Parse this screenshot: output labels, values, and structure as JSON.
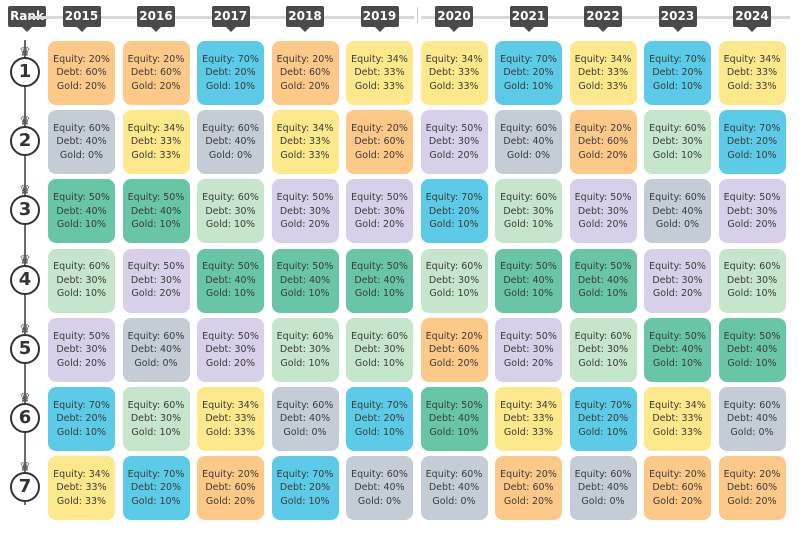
{
  "header_label": "Rank",
  "palette": {
    "Equity: 70%|Debt: 20%|Gold: 10%": "#5ccbe8",
    "Equity: 20%|Debt: 60%|Gold: 20%": "#fdc989",
    "Equity: 34%|Debt: 33%|Gold: 33%": "#fde98c",
    "Equity: 60%|Debt: 40%|Gold: 0%": "#c4cdd5",
    "Equity: 50%|Debt: 30%|Gold: 20%": "#d8d0ea",
    "Equity: 60%|Debt: 30%|Gold: 10%": "#c6e6cb",
    "Equity: 50%|Debt: 40%|Gold: 10%": "#68c6a6"
  },
  "chart_data": {
    "type": "table",
    "columns": [
      "2015",
      "2016",
      "2017",
      "2018",
      "2019",
      "2020",
      "2021",
      "2022",
      "2023",
      "2024"
    ],
    "rows": [
      "1",
      "2",
      "3",
      "4",
      "5",
      "6",
      "7"
    ],
    "cells": [
      [
        [
          "Equity: 20%",
          "Debt: 60%",
          "Gold: 20%"
        ],
        [
          "Equity: 20%",
          "Debt: 60%",
          "Gold: 20%"
        ],
        [
          "Equity: 70%",
          "Debt: 20%",
          "Gold: 10%"
        ],
        [
          "Equity: 20%",
          "Debt: 60%",
          "Gold: 20%"
        ],
        [
          "Equity: 34%",
          "Debt: 33%",
          "Gold: 33%"
        ],
        [
          "Equity: 34%",
          "Debt: 33%",
          "Gold: 33%"
        ],
        [
          "Equity: 70%",
          "Debt: 20%",
          "Gold: 10%"
        ],
        [
          "Equity: 34%",
          "Debt: 33%",
          "Gold: 33%"
        ],
        [
          "Equity: 70%",
          "Debt: 20%",
          "Gold: 10%"
        ],
        [
          "Equity: 34%",
          "Debt: 33%",
          "Gold: 33%"
        ]
      ],
      [
        [
          "Equity: 60%",
          "Debt: 40%",
          "Gold: 0%"
        ],
        [
          "Equity: 34%",
          "Debt: 33%",
          "Gold: 33%"
        ],
        [
          "Equity: 60%",
          "Debt: 40%",
          "Gold: 0%"
        ],
        [
          "Equity: 34%",
          "Debt: 33%",
          "Gold: 33%"
        ],
        [
          "Equity: 20%",
          "Debt: 60%",
          "Gold: 20%"
        ],
        [
          "Equity: 50%",
          "Debt: 30%",
          "Gold: 20%"
        ],
        [
          "Equity: 60%",
          "Debt: 40%",
          "Gold: 0%"
        ],
        [
          "Equity: 20%",
          "Debt: 60%",
          "Gold: 20%"
        ],
        [
          "Equity: 60%",
          "Debt: 30%",
          "Gold: 10%"
        ],
        [
          "Equity: 70%",
          "Debt: 20%",
          "Gold: 10%"
        ]
      ],
      [
        [
          "Equity: 50%",
          "Debt: 40%",
          "Gold: 10%"
        ],
        [
          "Equity: 50%",
          "Debt: 40%",
          "Gold: 10%"
        ],
        [
          "Equity: 60%",
          "Debt: 30%",
          "Gold: 10%"
        ],
        [
          "Equity: 50%",
          "Debt: 30%",
          "Gold: 20%"
        ],
        [
          "Equity: 50%",
          "Debt: 30%",
          "Gold: 20%"
        ],
        [
          "Equity: 70%",
          "Debt: 20%",
          "Gold: 10%"
        ],
        [
          "Equity: 60%",
          "Debt: 30%",
          "Gold: 10%"
        ],
        [
          "Equity: 50%",
          "Debt: 30%",
          "Gold: 20%"
        ],
        [
          "Equity: 60%",
          "Debt: 40%",
          "Gold: 0%"
        ],
        [
          "Equity: 50%",
          "Debt: 30%",
          "Gold: 20%"
        ]
      ],
      [
        [
          "Equity: 60%",
          "Debt: 30%",
          "Gold: 10%"
        ],
        [
          "Equity: 50%",
          "Debt: 30%",
          "Gold: 20%"
        ],
        [
          "Equity: 50%",
          "Debt: 40%",
          "Gold: 10%"
        ],
        [
          "Equity: 50%",
          "Debt: 40%",
          "Gold: 10%"
        ],
        [
          "Equity: 50%",
          "Debt: 40%",
          "Gold: 10%"
        ],
        [
          "Equity: 60%",
          "Debt: 30%",
          "Gold: 10%"
        ],
        [
          "Equity: 50%",
          "Debt: 40%",
          "Gold: 10%"
        ],
        [
          "Equity: 50%",
          "Debt: 40%",
          "Gold: 10%"
        ],
        [
          "Equity: 50%",
          "Debt: 30%",
          "Gold: 20%"
        ],
        [
          "Equity: 60%",
          "Debt: 30%",
          "Gold: 10%"
        ]
      ],
      [
        [
          "Equity: 50%",
          "Debt: 30%",
          "Gold: 20%"
        ],
        [
          "Equity: 60%",
          "Debt: 40%",
          "Gold: 0%"
        ],
        [
          "Equity: 50%",
          "Debt: 30%",
          "Gold: 20%"
        ],
        [
          "Equity: 60%",
          "Debt: 30%",
          "Gold: 10%"
        ],
        [
          "Equity: 60%",
          "Debt: 30%",
          "Gold: 10%"
        ],
        [
          "Equity: 20%",
          "Debt: 60%",
          "Gold: 20%"
        ],
        [
          "Equity: 50%",
          "Debt: 30%",
          "Gold: 20%"
        ],
        [
          "Equity: 60%",
          "Debt: 30%",
          "Gold: 10%"
        ],
        [
          "Equity: 50%",
          "Debt: 40%",
          "Gold: 10%"
        ],
        [
          "Equity: 50%",
          "Debt: 40%",
          "Gold: 10%"
        ]
      ],
      [
        [
          "Equity: 70%",
          "Debt: 20%",
          "Gold: 10%"
        ],
        [
          "Equity: 60%",
          "Debt: 30%",
          "Gold: 10%"
        ],
        [
          "Equity: 34%",
          "Debt: 33%",
          "Gold: 33%"
        ],
        [
          "Equity: 60%",
          "Debt: 40%",
          "Gold: 0%"
        ],
        [
          "Equity: 70%",
          "Debt: 20%",
          "Gold: 10%"
        ],
        [
          "Equity: 50%",
          "Debt: 40%",
          "Gold: 10%"
        ],
        [
          "Equity: 34%",
          "Debt: 33%",
          "Gold: 33%"
        ],
        [
          "Equity: 70%",
          "Debt: 20%",
          "Gold: 10%"
        ],
        [
          "Equity: 34%",
          "Debt: 33%",
          "Gold: 33%"
        ],
        [
          "Equity: 60%",
          "Debt: 40%",
          "Gold: 0%"
        ]
      ],
      [
        [
          "Equity: 34%",
          "Debt: 33%",
          "Gold: 33%"
        ],
        [
          "Equity: 70%",
          "Debt: 20%",
          "Gold: 10%"
        ],
        [
          "Equity: 20%",
          "Debt: 60%",
          "Gold: 20%"
        ],
        [
          "Equity: 70%",
          "Debt: 20%",
          "Gold: 10%"
        ],
        [
          "Equity: 60%",
          "Debt: 40%",
          "Gold: 0%"
        ],
        [
          "Equity: 60%",
          "Debt: 40%",
          "Gold: 0%"
        ],
        [
          "Equity: 20%",
          "Debt: 60%",
          "Gold: 20%"
        ],
        [
          "Equity: 60%",
          "Debt: 40%",
          "Gold: 0%"
        ],
        [
          "Equity: 20%",
          "Debt: 60%",
          "Gold: 20%"
        ],
        [
          "Equity: 20%",
          "Debt: 60%",
          "Gold: 20%"
        ]
      ]
    ]
  }
}
